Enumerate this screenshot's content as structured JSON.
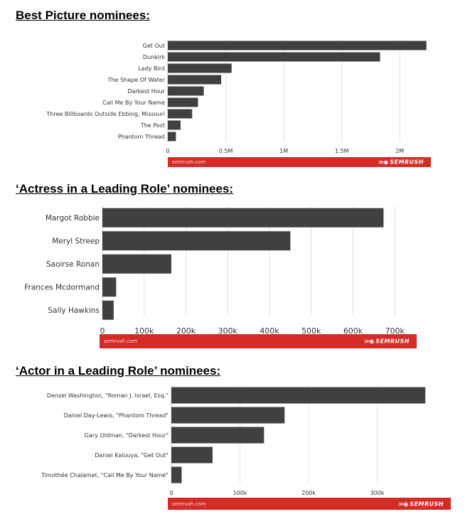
{
  "sections": [
    {
      "title": "Best Picture nominees:"
    },
    {
      "title": "‘Actress in a Leading Role’ nominees:"
    },
    {
      "title": "‘Actor in a Leading Role’ nominees:"
    }
  ],
  "footer": {
    "site": "semrush.com",
    "brand": "SEMRUSH",
    "brand_color": "#d52b26"
  },
  "colors": {
    "bar": "#404040",
    "grid": "#e0e0e0",
    "label": "#333333",
    "footer": "#d52b26"
  },
  "chart_data": [
    {
      "type": "bar",
      "orientation": "horizontal",
      "title": "",
      "categories": [
        "Get Out",
        "Dunkirk",
        "Lady Bird",
        "The Shape Of Water",
        "Darkest Hour",
        "Call Me By Your Name",
        "Three Billboards Outside Ebbing, Missouri",
        "The Post",
        "Phantom Thread"
      ],
      "values": [
        2230000,
        1830000,
        550000,
        460000,
        310000,
        260000,
        210000,
        110000,
        70000
      ],
      "xlim": [
        0,
        2250000
      ],
      "ticks": [
        0,
        500000,
        1000000,
        1500000,
        2000000
      ],
      "tick_labels": [
        "0",
        "0.5M",
        "1M",
        "1.5M",
        "2M"
      ],
      "grid": true
    },
    {
      "type": "bar",
      "orientation": "horizontal",
      "title": "",
      "categories": [
        "Margot Robbie",
        "Meryl Streep",
        "Saoirse Ronan",
        "Frances Mcdormand",
        "Sally Hawkins"
      ],
      "values": [
        673000,
        450000,
        165000,
        33000,
        27000
      ],
      "xlim": [
        0,
        720000
      ],
      "ticks": [
        0,
        100000,
        200000,
        300000,
        400000,
        500000,
        600000,
        700000
      ],
      "tick_labels": [
        "0",
        "100k",
        "200k",
        "300k",
        "400k",
        "500k",
        "600k",
        "700k"
      ],
      "grid": true
    },
    {
      "type": "bar",
      "orientation": "horizontal",
      "title": "",
      "categories": [
        "Denzel Washington, \"Roman J. Israel, Esq.\"",
        "Daniel Day-Lewis, \"Phantom Thread\"",
        "Gary Oldman, \"Darkest Hour\"",
        "Daniel Kaluuya, \"Get Out\"",
        "Timothée Chalamet, \"Call Me By Your Name\""
      ],
      "values": [
        370000,
        165000,
        135000,
        60000,
        15000
      ],
      "xlim": [
        0,
        375000
      ],
      "ticks": [
        0,
        100000,
        200000,
        300000
      ],
      "tick_labels": [
        "0",
        "100k",
        "200k",
        "300k"
      ],
      "grid": true
    }
  ]
}
